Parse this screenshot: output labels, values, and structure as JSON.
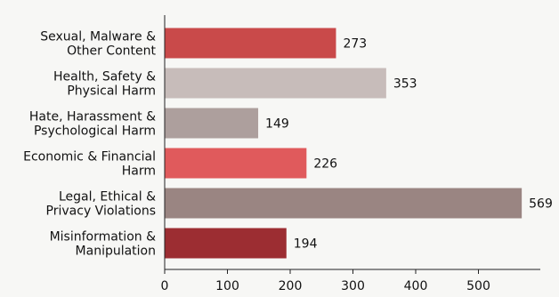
{
  "chart_data": {
    "type": "bar",
    "orientation": "horizontal",
    "categories": [
      [
        "Sexual, Malware &",
        "Other Content"
      ],
      [
        "Health, Safety &",
        "Physical Harm"
      ],
      [
        "Hate, Harassment &",
        "Psychological Harm"
      ],
      [
        "Economic & Financial",
        "Harm"
      ],
      [
        "Legal, Ethical &",
        "Privacy Violations"
      ],
      [
        "Misinformation &",
        "Manipulation"
      ]
    ],
    "values": [
      273,
      353,
      149,
      226,
      569,
      194
    ],
    "value_labels": [
      "273",
      "353",
      "149",
      "226",
      "569",
      "194"
    ],
    "colors": [
      "#c94a4a",
      "#c7bcba",
      "#ad9f9d",
      "#e05a5c",
      "#9a8582",
      "#9c2d32"
    ],
    "xlim": [
      0,
      600
    ],
    "xticks": [
      0,
      100,
      200,
      300,
      400,
      500
    ],
    "xtick_labels": [
      "0",
      "100",
      "200",
      "300",
      "400",
      "500"
    ],
    "title": "",
    "xlabel": "",
    "ylabel": "",
    "grid": false,
    "legend": "none"
  }
}
